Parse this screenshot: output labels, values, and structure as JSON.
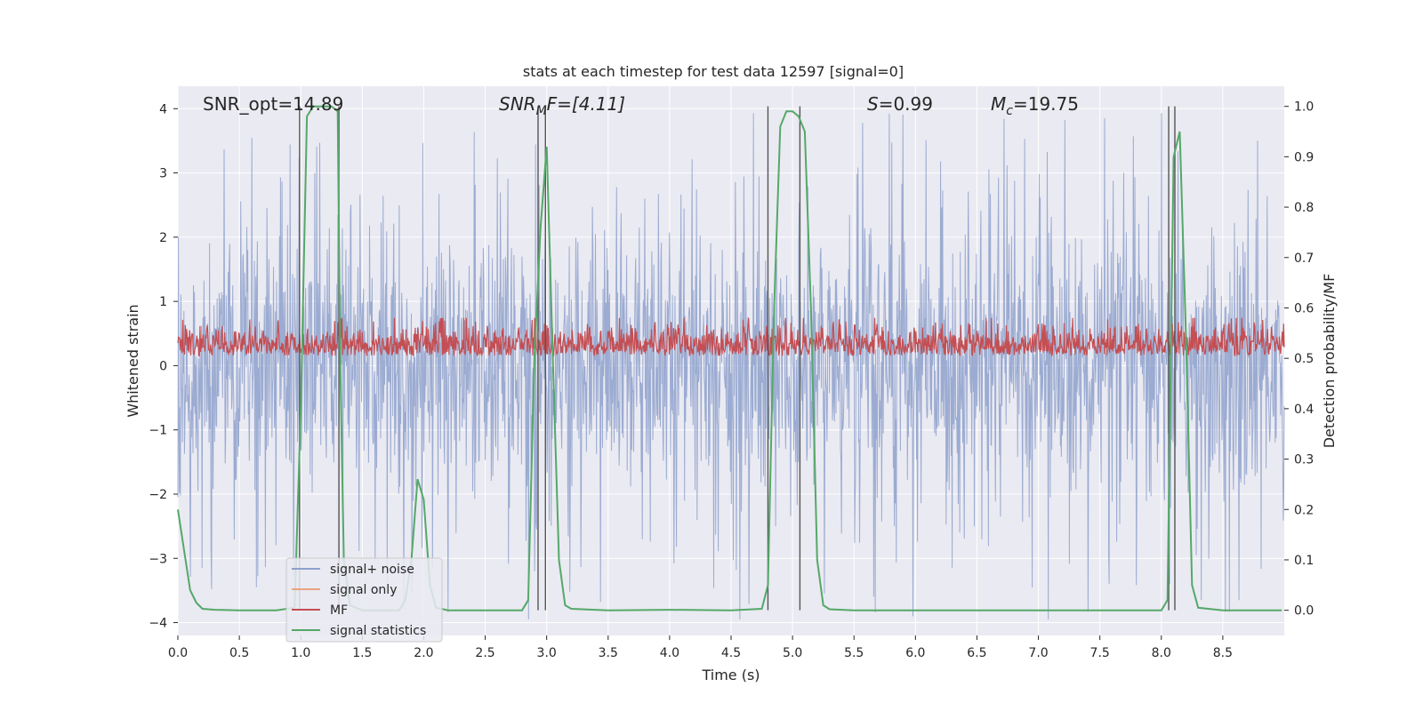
{
  "chart_data": {
    "type": "line",
    "title": "stats at each timestep for test data 12597 [signal=0]",
    "xlabel": "Time (s)",
    "ylabel": "Whitened strain",
    "y2label": "Detection probability/MF",
    "xlim": [
      0.0,
      9.0
    ],
    "ylim": [
      -4.2,
      4.35
    ],
    "y2lim": [
      -0.05,
      1.04
    ],
    "xticks": [
      "0.0",
      "0.5",
      "1.0",
      "1.5",
      "2.0",
      "2.5",
      "3.0",
      "3.5",
      "4.0",
      "4.5",
      "5.0",
      "5.5",
      "6.0",
      "6.5",
      "7.0",
      "7.5",
      "8.0",
      "8.5"
    ],
    "xtick_values": [
      0,
      0.5,
      1,
      1.5,
      2,
      2.5,
      3,
      3.5,
      4,
      4.5,
      5,
      5.5,
      6,
      6.5,
      7,
      7.5,
      8,
      8.5
    ],
    "yticks": [
      "4",
      "3",
      "2",
      "1",
      "0",
      "−1",
      "−2",
      "−3",
      "−4"
    ],
    "ytick_values": [
      4,
      3,
      2,
      1,
      0,
      -1,
      -2,
      -3,
      -4
    ],
    "y2ticks": [
      "1.0",
      "0.9",
      "0.8",
      "0.7",
      "0.6",
      "0.5",
      "0.4",
      "0.3",
      "0.2",
      "0.1",
      "0.0"
    ],
    "y2tick_values": [
      1.0,
      0.9,
      0.8,
      0.7,
      0.6,
      0.5,
      0.4,
      0.3,
      0.2,
      0.1,
      0.0
    ],
    "annotations": {
      "snr_opt": "SNR_opt=14.89",
      "snr_mf_main": "SNR",
      "snr_mf_sub": "M",
      "snr_mf_rest": "F=[4.11]",
      "s_main": "S",
      "s_rest": "=0.99",
      "mc_main": "M",
      "mc_sub": "c",
      "mc_rest": "=19.75"
    },
    "vlines_x": [
      0.99,
      1.31,
      2.93,
      2.99,
      4.8,
      5.06,
      8.06,
      8.11
    ],
    "series": [
      {
        "name": "signal+ noise",
        "color": "#8da0cb",
        "axis": "left",
        "description": "noise band approx ±2, spikes to about ±4"
      },
      {
        "name": "signal only",
        "color": "#e8a381",
        "axis": "left",
        "values": []
      },
      {
        "name": "MF",
        "color": "#c44e52",
        "axis": "right",
        "range": [
          0.5,
          0.58
        ]
      },
      {
        "name": "signal statistics",
        "color": "#55a868",
        "axis": "right",
        "x": [
          0.0,
          0.05,
          0.1,
          0.15,
          0.2,
          0.3,
          0.5,
          0.8,
          0.95,
          1.0,
          1.05,
          1.1,
          1.2,
          1.25,
          1.3,
          1.32,
          1.35,
          1.4,
          1.5,
          1.6,
          1.7,
          1.8,
          1.85,
          1.9,
          1.95,
          2.0,
          2.05,
          2.1,
          2.2,
          2.5,
          2.8,
          2.85,
          2.9,
          2.95,
          3.0,
          3.05,
          3.1,
          3.15,
          3.2,
          3.5,
          4.0,
          4.5,
          4.75,
          4.8,
          4.85,
          4.9,
          4.95,
          5.0,
          5.05,
          5.1,
          5.15,
          5.2,
          5.25,
          5.3,
          5.5,
          6.0,
          7.0,
          7.5,
          8.0,
          8.05,
          8.1,
          8.15,
          8.2,
          8.25,
          8.3,
          8.5,
          8.98
        ],
        "y": [
          0.2,
          0.12,
          0.04,
          0.015,
          0.003,
          0.001,
          0.0,
          0.0,
          0.005,
          0.4,
          0.98,
          1.0,
          1.0,
          1.0,
          0.99,
          0.5,
          0.1,
          0.01,
          0.0,
          0.0,
          0.0,
          0.0,
          0.02,
          0.1,
          0.26,
          0.22,
          0.05,
          0.005,
          0.0,
          0.0,
          0.0,
          0.02,
          0.5,
          0.76,
          0.92,
          0.5,
          0.1,
          0.01,
          0.003,
          0.0,
          0.001,
          0.0,
          0.003,
          0.05,
          0.6,
          0.96,
          0.99,
          0.99,
          0.98,
          0.95,
          0.6,
          0.1,
          0.01,
          0.002,
          0.0,
          0.0,
          0.0,
          0.0,
          0.0,
          0.02,
          0.9,
          0.95,
          0.55,
          0.05,
          0.005,
          0.0,
          0.0
        ]
      }
    ],
    "legend": {
      "position": "lower-left",
      "entries": [
        {
          "label": "signal+ noise",
          "color": "#8da0cb"
        },
        {
          "label": "signal only",
          "color": "#e8a381"
        },
        {
          "label": "MF",
          "color": "#c44e52"
        },
        {
          "label": "signal statistics",
          "color": "#55a868"
        }
      ]
    }
  }
}
